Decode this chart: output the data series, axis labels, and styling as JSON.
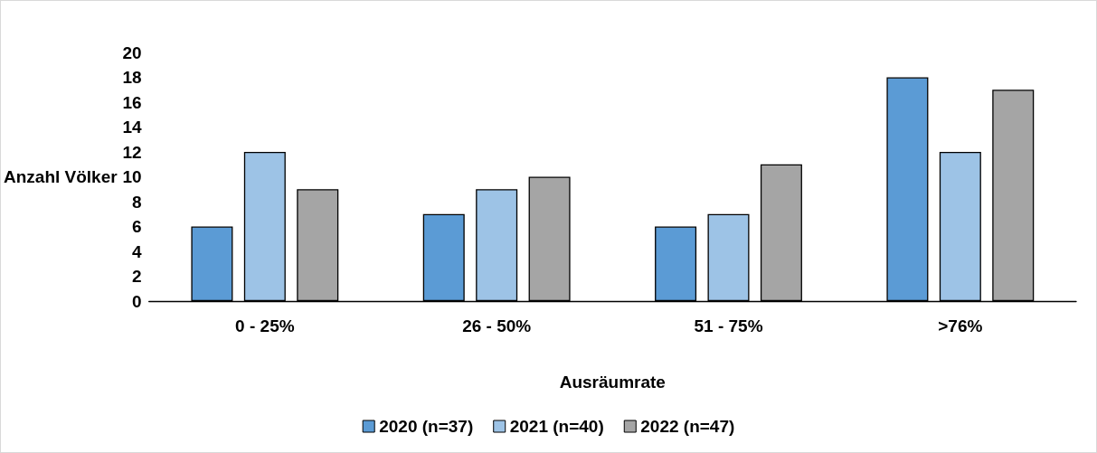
{
  "chart_data": {
    "type": "bar",
    "xlabel": "Ausräumrate",
    "ylabel": "Anzahl Völker",
    "categories": [
      "0 - 25%",
      "26 - 50%",
      "51 - 75%",
      ">76%"
    ],
    "series": [
      {
        "name": "2020 (n=37)",
        "color": "#5b9bd5",
        "values": [
          6,
          7,
          6,
          18
        ]
      },
      {
        "name": "2021 (n=40)",
        "color": "#9dc3e6",
        "values": [
          12,
          9,
          7,
          12
        ]
      },
      {
        "name": "2022 (n=47)",
        "color": "#a5a5a5",
        "values": [
          9,
          10,
          11,
          17
        ]
      }
    ],
    "ylim": [
      0,
      20
    ],
    "yticks": [
      0,
      2,
      4,
      6,
      8,
      10,
      12,
      14,
      16,
      18,
      20
    ],
    "grid": false,
    "legend": "bottom"
  }
}
